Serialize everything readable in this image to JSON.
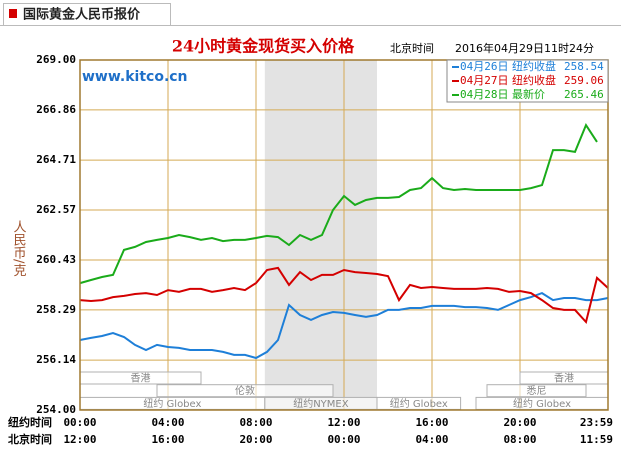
{
  "tab_title": "国际黄金人民币报价",
  "chart_data": {
    "type": "line",
    "title": "24小时黄金现货买入价格",
    "time_zone_label": "北京时间",
    "timestamp": "2016年04月29日11时24分",
    "watermark": "www.kitco.cn",
    "y_label": "人民币/克",
    "ylim": [
      254,
      269
    ],
    "yticks": [
      {
        "value": 269,
        "label": "269.00"
      },
      266.86,
      264.71,
      262.57,
      260.43,
      258.29,
      256.14,
      {
        "value": 254,
        "label": "254.00"
      }
    ],
    "xlim": [
      0,
      24
    ],
    "grid": true,
    "x_axis_rows": [
      {
        "name": "纽约时间",
        "ticks": [
          {
            "value": 0,
            "label": "00:00"
          },
          {
            "value": 4,
            "label": "04:00"
          },
          {
            "value": 8,
            "label": "08:00"
          },
          {
            "value": 12,
            "label": "12:00"
          },
          {
            "value": 16,
            "label": "16:00"
          },
          {
            "value": 20,
            "label": "20:00"
          },
          {
            "value": 24,
            "label": "23:59"
          }
        ]
      },
      {
        "name": "北京时间",
        "ticks": [
          {
            "value": 0,
            "label": "12:00"
          },
          {
            "value": 4,
            "label": "16:00"
          },
          {
            "value": 8,
            "label": "20:00"
          },
          {
            "value": 12,
            "label": "00:00"
          },
          {
            "value": 16,
            "label": "04:00"
          },
          {
            "value": 20,
            "label": "08:00"
          },
          {
            "value": 24,
            "label": "11:59"
          }
        ]
      }
    ],
    "highlight_x": [
      8.4,
      13.5
    ],
    "session_lanes": [
      [
        {
          "label": "香港",
          "start": 0,
          "end": 5.5
        },
        {
          "label": "香港",
          "start": 20,
          "end": 24
        }
      ],
      [
        {
          "label": "伦敦",
          "start": 3.5,
          "end": 11.5
        },
        {
          "label": "悉尼",
          "start": 18.5,
          "end": 23
        }
      ],
      [
        {
          "label": "纽约 Globex",
          "start": 0,
          "end": 8.4
        },
        {
          "label": "纽约NYMEX",
          "start": 8.4,
          "end": 13.5
        },
        {
          "label": "纽约 Globex",
          "start": 13.5,
          "end": 17.3
        },
        {
          "label": "纽约 Globex",
          "start": 18,
          "end": 24
        }
      ]
    ],
    "x": [
      0,
      0.5,
      1,
      1.5,
      2,
      2.5,
      3,
      3.5,
      4,
      4.5,
      5,
      5.5,
      6,
      6.5,
      7,
      7.5,
      8,
      8.5,
      9,
      9.5,
      10,
      10.5,
      11,
      11.5,
      12,
      12.5,
      13,
      13.5,
      14,
      14.5,
      15,
      15.5,
      16,
      16.5,
      17,
      17.5,
      18,
      18.5,
      19,
      19.5,
      20,
      20.5,
      21,
      21.5,
      22,
      22.5,
      23,
      23.5,
      24
    ],
    "series": [
      {
        "name": "04月26日",
        "label": "纽约收盘",
        "last": "258.54",
        "color": "#1e7fd8",
        "values": [
          257.0,
          257.09,
          257.17,
          257.3,
          257.13,
          256.79,
          256.57,
          256.79,
          256.7,
          256.66,
          256.57,
          256.57,
          256.57,
          256.49,
          256.36,
          256.36,
          256.23,
          256.49,
          257.0,
          258.5,
          258.07,
          257.86,
          258.07,
          258.2,
          258.16,
          258.07,
          257.99,
          258.07,
          258.29,
          258.29,
          258.37,
          258.37,
          258.46,
          258.46,
          258.46,
          258.41,
          258.41,
          258.37,
          258.29,
          258.5,
          258.71,
          258.84,
          259.01,
          258.71,
          258.8,
          258.8,
          258.71,
          258.71,
          258.8
        ]
      },
      {
        "name": "04月27日",
        "label": "纽约收盘",
        "last": "259.06",
        "color": "#d40000",
        "values": [
          258.71,
          258.67,
          258.71,
          258.84,
          258.89,
          258.97,
          259.01,
          258.93,
          259.14,
          259.06,
          259.19,
          259.19,
          259.06,
          259.14,
          259.23,
          259.14,
          259.44,
          260.0,
          260.09,
          259.36,
          259.91,
          259.57,
          259.79,
          259.79,
          260.0,
          259.91,
          259.87,
          259.83,
          259.74,
          258.71,
          259.36,
          259.23,
          259.27,
          259.23,
          259.19,
          259.19,
          259.19,
          259.23,
          259.19,
          259.06,
          259.1,
          259.01,
          258.71,
          258.37,
          258.29,
          258.29,
          257.77,
          259.66,
          259.23
        ]
      },
      {
        "name": "04月28日",
        "label": "最新价",
        "last": "265.46",
        "color": "#1aab1a",
        "values": [
          259.44,
          259.57,
          259.7,
          259.79,
          260.86,
          260.99,
          261.2,
          261.29,
          261.37,
          261.5,
          261.41,
          261.29,
          261.37,
          261.24,
          261.29,
          261.29,
          261.37,
          261.46,
          261.41,
          261.07,
          261.5,
          261.29,
          261.5,
          262.57,
          263.17,
          262.79,
          263.0,
          263.09,
          263.09,
          263.13,
          263.43,
          263.51,
          263.94,
          263.51,
          263.43,
          263.47,
          263.43,
          263.43,
          263.43,
          263.43,
          263.43,
          263.51,
          263.64,
          265.14,
          265.14,
          265.06,
          266.21,
          265.49,
          null
        ]
      }
    ]
  }
}
